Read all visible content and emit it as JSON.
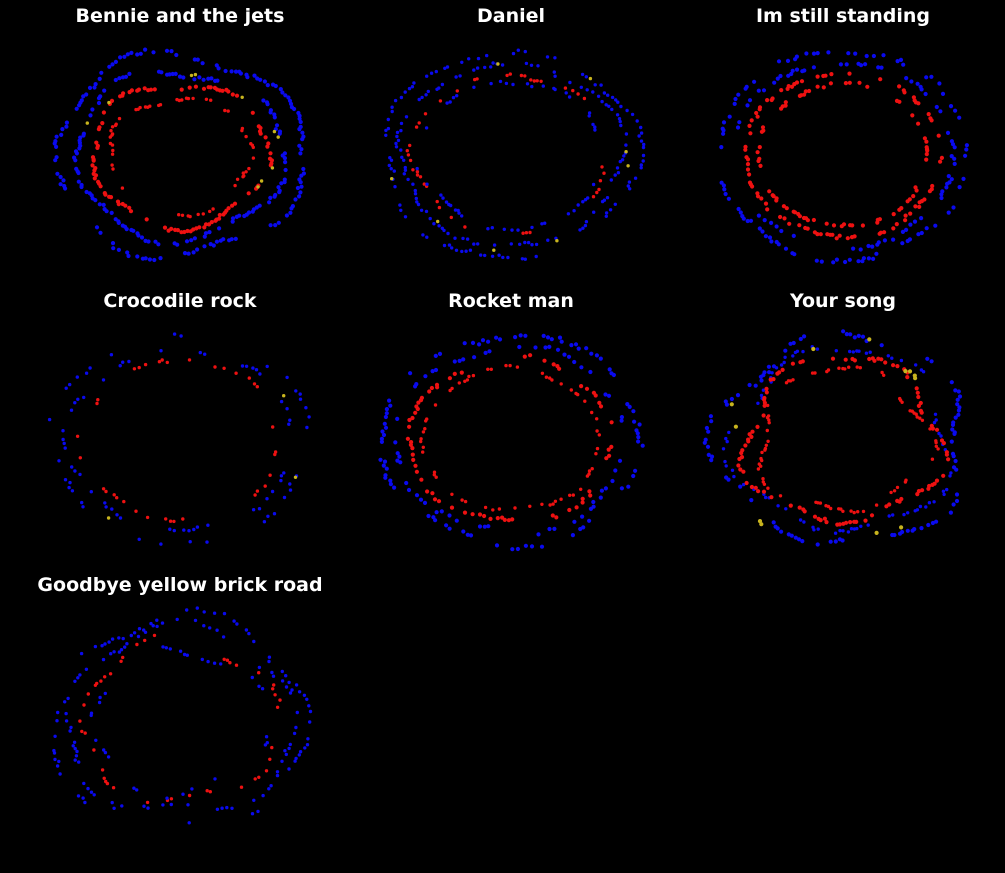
{
  "chart_data": [
    {
      "type": "scatter",
      "title": "Bennie and the jets",
      "rings": [
        {
          "r": 0.93,
          "color": "blue",
          "density": 0.92,
          "dash": 0.65,
          "seed": 11
        },
        {
          "r": 0.78,
          "color": "blue",
          "density": 0.88,
          "dash": 0.55,
          "seed": 12
        },
        {
          "r": 0.66,
          "color": "red",
          "density": 0.85,
          "dash": 0.55,
          "seed": 13
        },
        {
          "r": 0.53,
          "color": "red",
          "density": 0.6,
          "dash": 0.45,
          "seed": 14
        },
        {
          "r": 0.72,
          "color": "yellow",
          "density": 0.06,
          "dash": 0.2,
          "seed": 15
        }
      ],
      "wobble": 0.08,
      "points_per_ring": 190
    },
    {
      "type": "scatter",
      "title": "Daniel",
      "rings": [
        {
          "r": 0.95,
          "color": "blue",
          "density": 0.7,
          "dash": 0.2,
          "seed": 21
        },
        {
          "r": 0.84,
          "color": "blue",
          "density": 0.65,
          "dash": 0.2,
          "seed": 22
        },
        {
          "r": 0.74,
          "color": "red",
          "density": 0.35,
          "dash": 0.15,
          "seed": 23
        },
        {
          "r": 0.68,
          "color": "blue",
          "density": 0.4,
          "dash": 0.15,
          "seed": 24
        },
        {
          "r": 0.88,
          "color": "yellow",
          "density": 0.05,
          "dash": 0.3,
          "seed": 25
        }
      ],
      "wobble": 0.05,
      "points_per_ring": 170
    },
    {
      "type": "scatter",
      "title": "Im still standing",
      "rings": [
        {
          "r": 0.97,
          "color": "blue",
          "density": 0.55,
          "dash": 0.9,
          "seed": 31
        },
        {
          "r": 0.86,
          "color": "blue",
          "density": 0.45,
          "dash": 0.85,
          "seed": 32
        },
        {
          "r": 0.76,
          "color": "red",
          "density": 0.5,
          "dash": 0.85,
          "seed": 33
        },
        {
          "r": 0.66,
          "color": "red",
          "density": 0.45,
          "dash": 0.85,
          "seed": 34
        }
      ],
      "wobble": 0.02,
      "points_per_ring": 200
    },
    {
      "type": "scatter",
      "title": "Crocodile rock",
      "rings": [
        {
          "r": 0.96,
          "color": "blue",
          "density": 0.45,
          "dash": 0.1,
          "seed": 41
        },
        {
          "r": 0.84,
          "color": "blue",
          "density": 0.45,
          "dash": 0.1,
          "seed": 42
        },
        {
          "r": 0.74,
          "color": "red",
          "density": 0.3,
          "dash": 0.15,
          "seed": 43
        },
        {
          "r": 0.92,
          "color": "yellow",
          "density": 0.01,
          "dash": 0.1,
          "seed": 44
        }
      ],
      "wobble": 0.04,
      "points_per_ring": 140
    },
    {
      "type": "scatter",
      "title": "Rocket man",
      "rings": [
        {
          "r": 0.97,
          "color": "blue",
          "density": 0.55,
          "dash": 0.55,
          "seed": 51
        },
        {
          "r": 0.86,
          "color": "blue",
          "density": 0.5,
          "dash": 0.55,
          "seed": 52
        },
        {
          "r": 0.76,
          "color": "red",
          "density": 0.55,
          "dash": 0.55,
          "seed": 53
        },
        {
          "r": 0.66,
          "color": "red",
          "density": 0.45,
          "dash": 0.45,
          "seed": 54
        }
      ],
      "wobble": 0.04,
      "points_per_ring": 170
    },
    {
      "type": "scatter",
      "title": "Your song",
      "rings": [
        {
          "r": 0.96,
          "color": "blue",
          "density": 0.75,
          "dash": 0.6,
          "seed": 61
        },
        {
          "r": 0.84,
          "color": "blue",
          "density": 0.6,
          "dash": 0.5,
          "seed": 62
        },
        {
          "r": 0.76,
          "color": "red",
          "density": 0.75,
          "dash": 0.6,
          "seed": 63
        },
        {
          "r": 0.66,
          "color": "red",
          "density": 0.6,
          "dash": 0.5,
          "seed": 64
        },
        {
          "r": 0.9,
          "color": "yellow",
          "density": 0.08,
          "dash": 0.8,
          "seed": 65
        }
      ],
      "wobble": 0.12,
      "points_per_ring": 190
    },
    {
      "type": "scatter",
      "title": "Goodbye yellow brick road",
      "rings": [
        {
          "r": 0.96,
          "color": "blue",
          "density": 0.55,
          "dash": 0.15,
          "seed": 71
        },
        {
          "r": 0.86,
          "color": "blue",
          "density": 0.5,
          "dash": 0.15,
          "seed": 72
        },
        {
          "r": 0.74,
          "color": "red",
          "density": 0.4,
          "dash": 0.2,
          "seed": 73
        },
        {
          "r": 0.66,
          "color": "blue",
          "density": 0.35,
          "dash": 0.15,
          "seed": 74
        }
      ],
      "wobble": 0.1,
      "points_per_ring": 160
    }
  ],
  "colors": {
    "background": "#000000",
    "blue": "#0a0aee",
    "red": "#ee1111",
    "yellow": "#c8b41e",
    "title": "#ffffff"
  }
}
